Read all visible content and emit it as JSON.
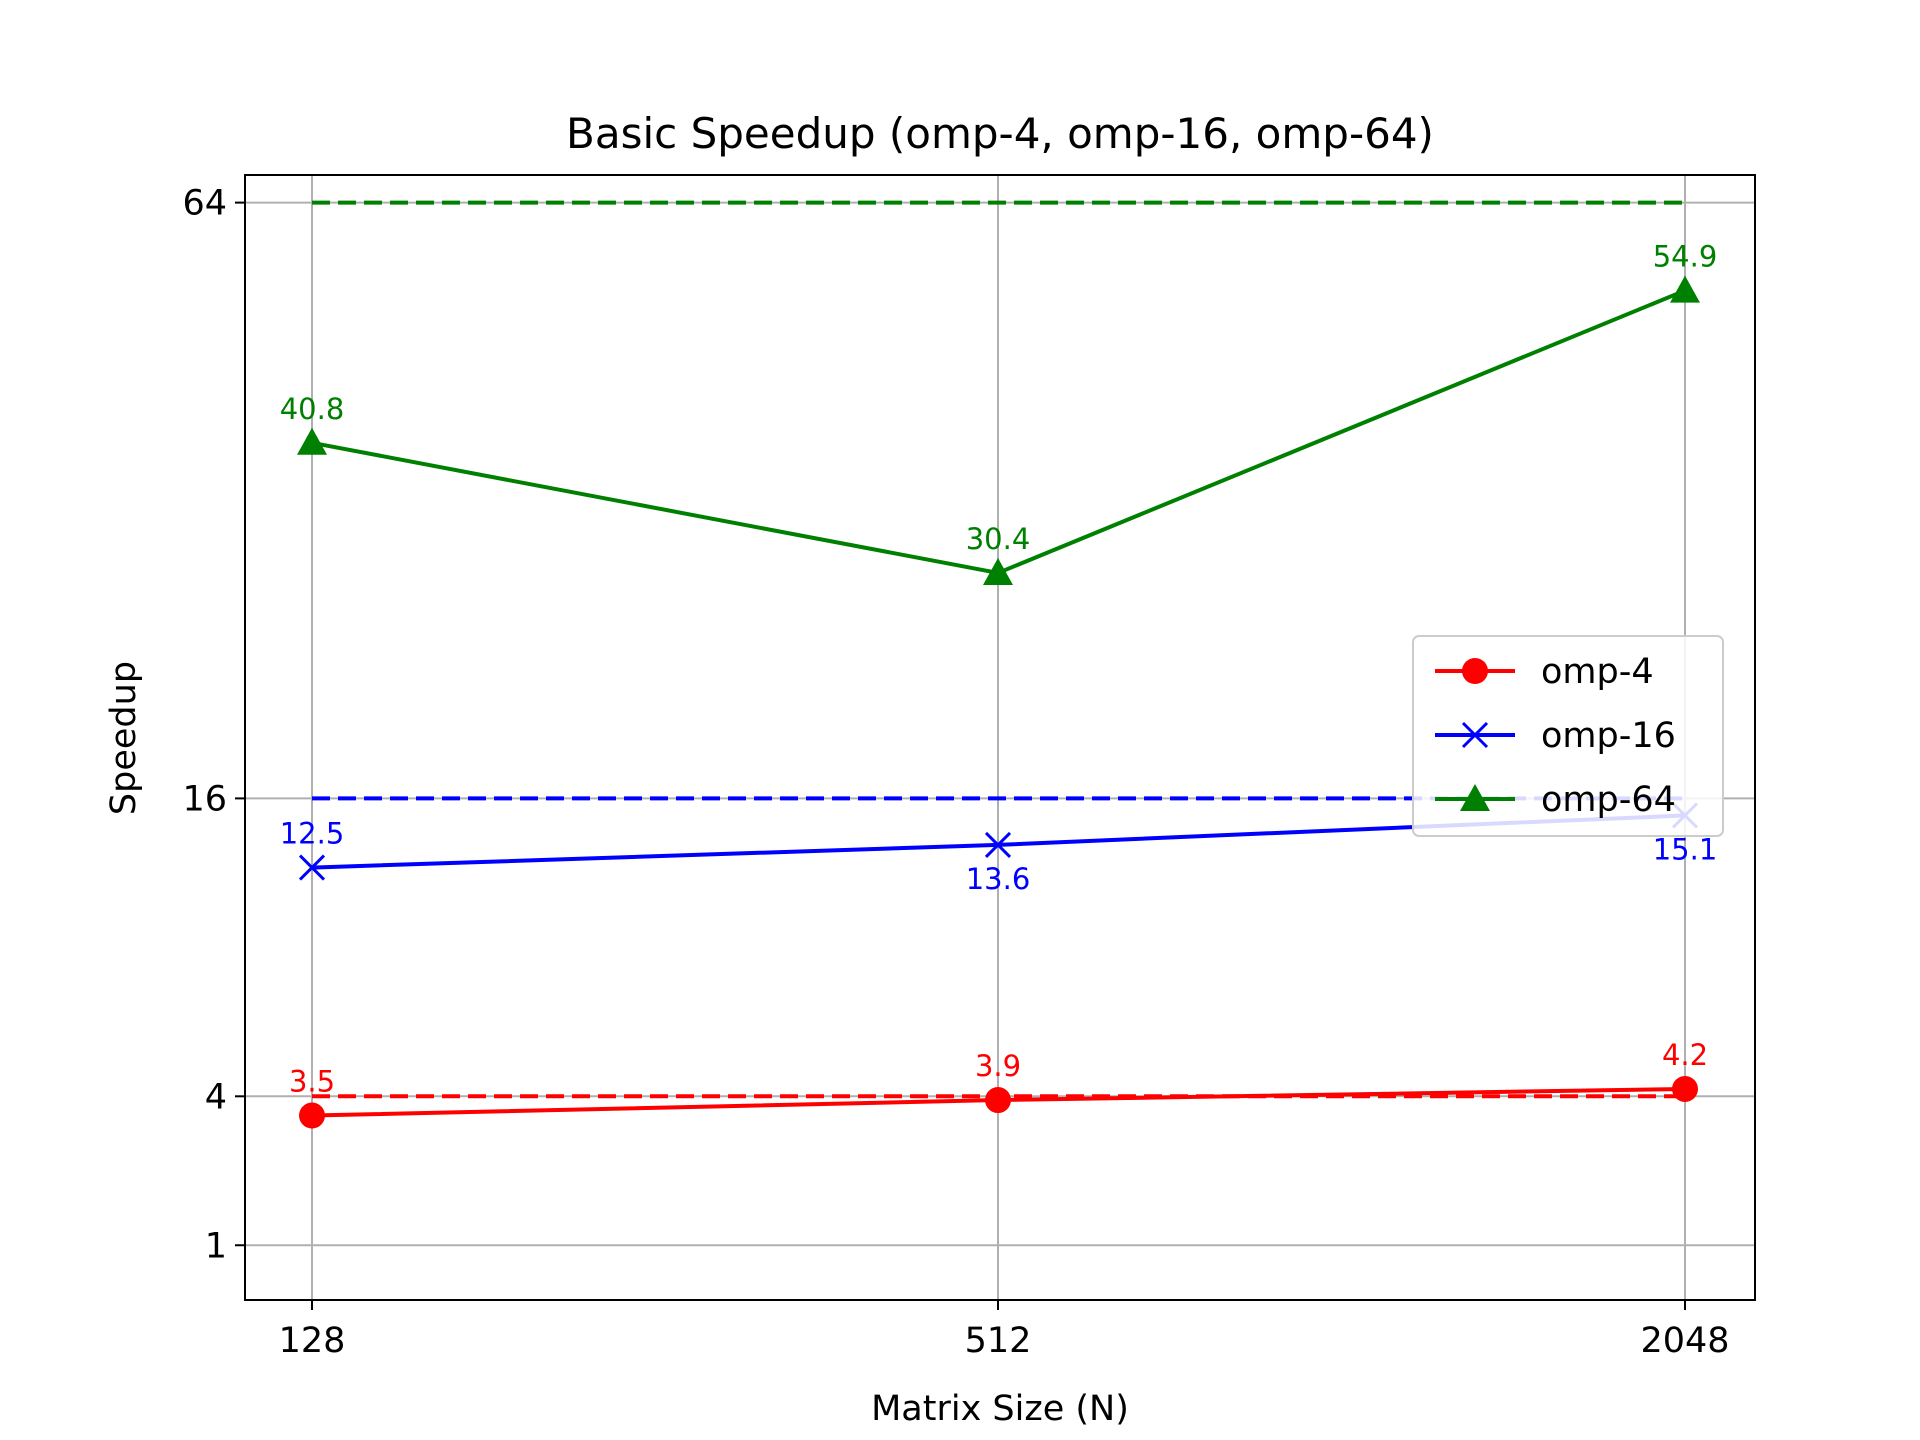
{
  "chart_data": {
    "type": "line",
    "title": "Basic Speedup (omp-4, omp-16, omp-64)",
    "xlabel": "Matrix Size (N)",
    "ylabel": "Speedup",
    "categories": [
      "128",
      "512",
      "2048"
    ],
    "yticks": [
      1,
      4,
      16,
      64
    ],
    "ylim": [
      0.4,
      67
    ],
    "grid": true,
    "legend_position": "center-right",
    "series": [
      {
        "name": "omp-4",
        "color": "#ff0000",
        "marker": "circle",
        "values": [
          3.5,
          3.9,
          4.2
        ],
        "labels": [
          "3.5",
          "3.9",
          "4.2"
        ],
        "label_side": [
          "above",
          "above",
          "above"
        ]
      },
      {
        "name": "omp-16",
        "color": "#0000ff",
        "marker": "x",
        "values": [
          12.5,
          13.6,
          15.1
        ],
        "labels": [
          "12.5",
          "13.6",
          "15.1"
        ],
        "label_side": [
          "above",
          "below",
          "below"
        ]
      },
      {
        "name": "omp-64",
        "color": "#008000",
        "marker": "triangle",
        "values": [
          40.8,
          30.4,
          54.9
        ],
        "labels": [
          "40.8",
          "30.4",
          "54.9"
        ],
        "label_side": [
          "above",
          "above",
          "above"
        ]
      }
    ],
    "reference_lines": [
      {
        "value": 4,
        "color": "#ff0000",
        "style": "dashed"
      },
      {
        "value": 16,
        "color": "#0000ff",
        "style": "dashed"
      },
      {
        "value": 64,
        "color": "#008000",
        "style": "dashed"
      }
    ]
  }
}
